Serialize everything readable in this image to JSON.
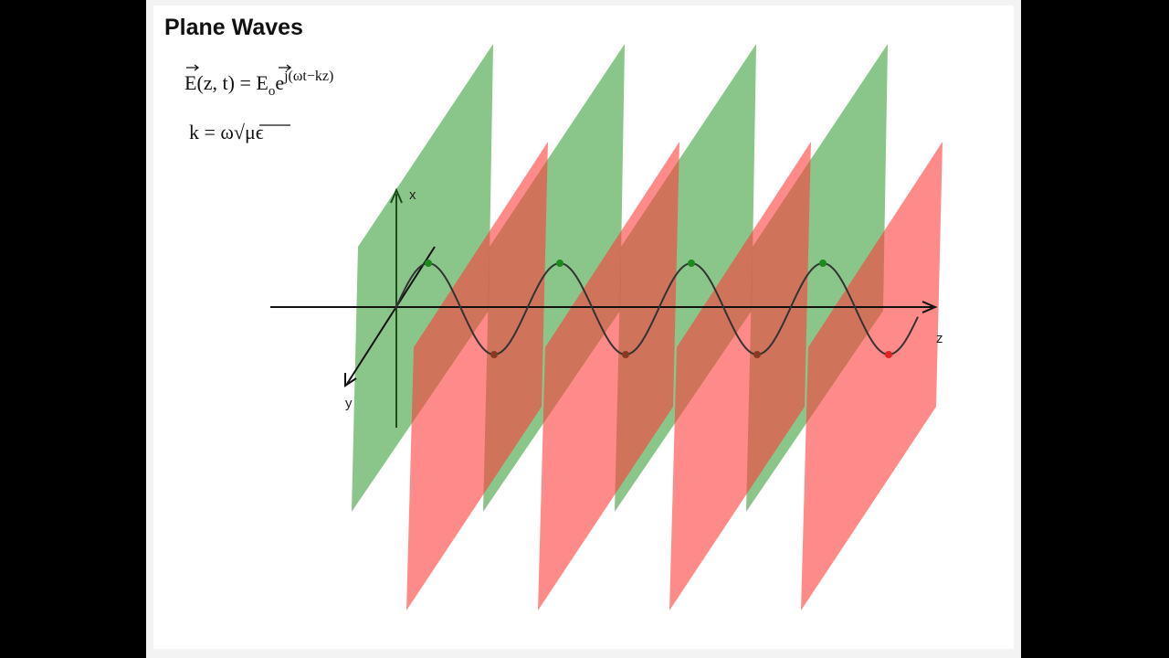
{
  "header": {
    "title": "Plane Waves"
  },
  "equations": [
    {
      "parts": [
        "E",
        "(z, t) = ",
        "E",
        "o",
        "e",
        "j(ωt−kz)"
      ]
    },
    {
      "parts": [
        "k = ω",
        "√",
        "μϵ"
      ]
    }
  ],
  "axes": {
    "x": "x",
    "y": "y",
    "z": "z"
  }
}
